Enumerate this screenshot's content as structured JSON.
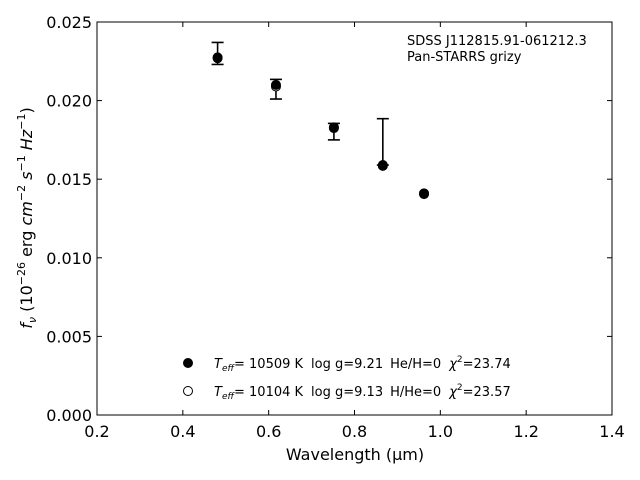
{
  "chart_data": {
    "type": "scatter",
    "xlabel": "Wavelength (μm)",
    "ylabel_parts": {
      "f": "f",
      "nu": "ν",
      "open": " (10",
      "exp1": "−26",
      "erg": " erg ",
      "cm": "cm",
      "exp2": "−2",
      "s": " s",
      "exp3": "−1",
      "hz": " Hz",
      "exp4": "−1",
      "close": ")"
    },
    "xlim": [
      0.2,
      1.4
    ],
    "ylim": [
      0.0,
      0.025
    ],
    "xticks": [
      "0.2",
      "0.4",
      "0.6",
      "0.8",
      "1.0",
      "1.2",
      "1.4"
    ],
    "yticks": [
      "0.000",
      "0.005",
      "0.010",
      "0.015",
      "0.020",
      "0.025"
    ],
    "annotation_lines": [
      "SDSS J112815.91-061212.3",
      "Pan-STARRS grizy"
    ],
    "series": [
      {
        "marker": "filled",
        "points": [
          {
            "x": 0.481,
            "y": 0.02275
          },
          {
            "x": 0.617,
            "y": 0.021
          },
          {
            "x": 0.752,
            "y": 0.0183
          },
          {
            "x": 0.866,
            "y": 0.0159
          },
          {
            "x": 0.962,
            "y": 0.0141
          }
        ]
      },
      {
        "marker": "open",
        "points": [
          {
            "x": 0.481,
            "y": 0.0227
          },
          {
            "x": 0.617,
            "y": 0.0209
          },
          {
            "x": 0.752,
            "y": 0.01825
          },
          {
            "x": 0.866,
            "y": 0.01585
          },
          {
            "x": 0.962,
            "y": 0.01405
          }
        ]
      }
    ],
    "observed": {
      "points": [
        {
          "x": 0.481,
          "y": 0.02275,
          "ylow": 0.0223,
          "yhigh": 0.0237
        },
        {
          "x": 0.617,
          "y": 0.02095,
          "ylow": 0.0201,
          "yhigh": 0.02135
        },
        {
          "x": 0.752,
          "y": 0.01835,
          "ylow": 0.0175,
          "yhigh": 0.01855
        },
        {
          "x": 0.866,
          "y": 0.0159,
          "ylow": 0.0159,
          "yhigh": 0.01885
        }
      ]
    },
    "legend": {
      "placement": "lower-center",
      "entries": [
        {
          "marker": "filled",
          "teff_T": "T",
          "teff_sub": "eff",
          "teff_val": "= 10509 K",
          "logg": "log g=9.21",
          "comp": "He/H=0",
          "chi_sym": "χ",
          "chi_exp": "2",
          "chi_val": "=23.74"
        },
        {
          "marker": "open",
          "teff_T": "T",
          "teff_sub": "eff",
          "teff_val": "= 10104 K",
          "logg": "log g=9.13",
          "comp": "H/He=0",
          "chi_sym": "χ",
          "chi_exp": "2",
          "chi_val": "=23.57"
        }
      ]
    }
  }
}
